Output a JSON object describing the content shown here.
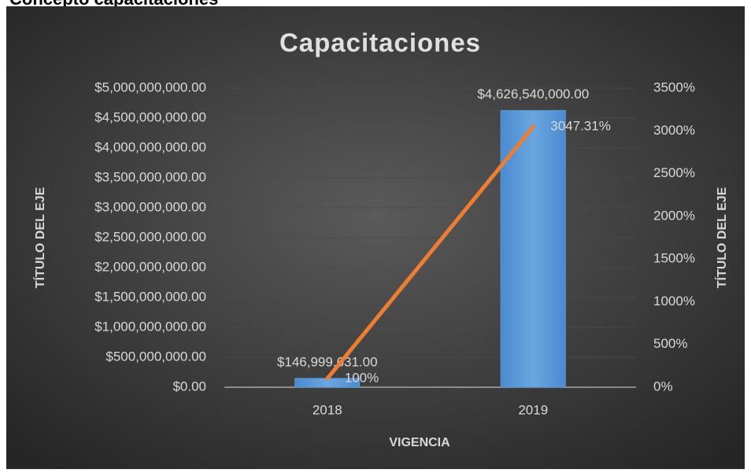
{
  "header": {
    "title": "Concepto capacitaciones"
  },
  "chart_data": {
    "type": "combo",
    "title": "Capacitaciones",
    "x_label": "VIGENCIA",
    "y_label": "TÍTULO DEL EJE",
    "y2_label": "TÍTULO DEL EJE",
    "categories": [
      "2018",
      "2019"
    ],
    "ylim": [
      0,
      5000000000
    ],
    "yticks": [
      {
        "value": 0,
        "label": "$0.00"
      },
      {
        "value": 500000000,
        "label": "$500,000,000.00"
      },
      {
        "value": 1000000000,
        "label": "$1,000,000,000.00"
      },
      {
        "value": 1500000000,
        "label": "$1,500,000,000.00"
      },
      {
        "value": 2000000000,
        "label": "$2,000,000,000.00"
      },
      {
        "value": 2500000000,
        "label": "$2,500,000,000.00"
      },
      {
        "value": 3000000000,
        "label": "$3,000,000,000.00"
      },
      {
        "value": 3500000000,
        "label": "$3,500,000,000.00"
      },
      {
        "value": 4000000000,
        "label": "$4,000,000,000.00"
      },
      {
        "value": 4500000000,
        "label": "$4,500,000,000.00"
      },
      {
        "value": 5000000000,
        "label": "$5,000,000,000.00"
      }
    ],
    "y2lim": [
      0,
      3500
    ],
    "y2ticks": [
      {
        "value": 0,
        "label": "0%"
      },
      {
        "value": 500,
        "label": "500%"
      },
      {
        "value": 1000,
        "label": "1000%"
      },
      {
        "value": 1500,
        "label": "1500%"
      },
      {
        "value": 2000,
        "label": "2000%"
      },
      {
        "value": 2500,
        "label": "2500%"
      },
      {
        "value": 3000,
        "label": "3000%"
      },
      {
        "value": 3500,
        "label": "3500%"
      }
    ],
    "grid": true,
    "series": [
      {
        "type": "bar",
        "color": "#5b9bd5",
        "values": [
          146999631,
          4626540000
        ],
        "value_labels": [
          "$146,999,631.00",
          "$4,626,540,000.00"
        ]
      },
      {
        "type": "line",
        "axis": "y2",
        "color": "#ed7d31",
        "values": [
          100,
          3047.31
        ],
        "value_labels": [
          "100%",
          "3047.31%"
        ]
      }
    ]
  }
}
